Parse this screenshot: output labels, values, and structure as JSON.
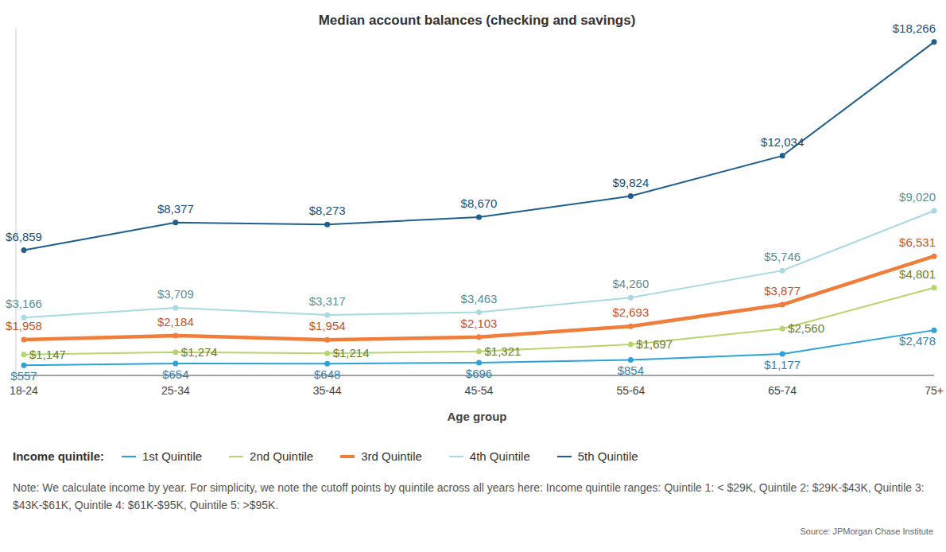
{
  "chart_data": {
    "type": "line",
    "title": "Median account balances (checking and savings)",
    "x_label": "Age group",
    "legend_title": "Income quintile:",
    "note": "Note: We calculate income by year. For simplicity, we note the cutoff points by quintile across all years here: Income quintile ranges: Quintile 1: < $29K, Quintile 2: $29K-$43K, Quintile 3: $43K-$61K, Quintile 4: $61K-$95K, Quintile 5: >$95K.",
    "source": "Source: JPMorgan Chase Institute",
    "categories": [
      "18-24",
      "25-34",
      "35-44",
      "45-54",
      "55-64",
      "65-74",
      "75+"
    ],
    "ylim": [
      0,
      19000
    ],
    "grid": false,
    "data_labels": true,
    "tick_labels": "x",
    "series": [
      {
        "name": "1st Quintile",
        "color": "#2ba3d8",
        "values": [
          557,
          654,
          648,
          696,
          854,
          1177,
          2478
        ],
        "value_labels": [
          "$557",
          "$654",
          "$648",
          "$696",
          "$854",
          "$1,177",
          "$2,478"
        ]
      },
      {
        "name": "2nd Quintile",
        "color": "#b6d66b",
        "values": [
          1147,
          1274,
          1214,
          1321,
          1697,
          2560,
          4801
        ],
        "value_labels": [
          "$1,147",
          "$1,274",
          "$1,214",
          "$1,321",
          "$1,697",
          "$2,560",
          "$4,801"
        ]
      },
      {
        "name": "3rd Quintile",
        "color": "#f07d3a",
        "values": [
          1958,
          2184,
          1954,
          2103,
          2693,
          3877,
          6531
        ],
        "value_labels": [
          "$1,958",
          "$2,184",
          "$1,954",
          "$2,103",
          "$2,693",
          "$3,877",
          "$6,531"
        ]
      },
      {
        "name": "4th Quintile",
        "color": "#a9d9e2",
        "values": [
          3166,
          3709,
          3317,
          3463,
          4260,
          5746,
          9020
        ],
        "value_labels": [
          "$3,166",
          "$3,709",
          "$3,317",
          "$3,463",
          "$4,260",
          "$5,746",
          "$9,020"
        ]
      },
      {
        "name": "5th Quintile",
        "color": "#1f5f8f",
        "values": [
          6859,
          8377,
          8273,
          8670,
          9824,
          12034,
          18266
        ],
        "value_labels": [
          "$6,859",
          "$8,377",
          "$8,273",
          "$8,670",
          "$9,824",
          "$12,034",
          "$18,266"
        ]
      }
    ]
  }
}
